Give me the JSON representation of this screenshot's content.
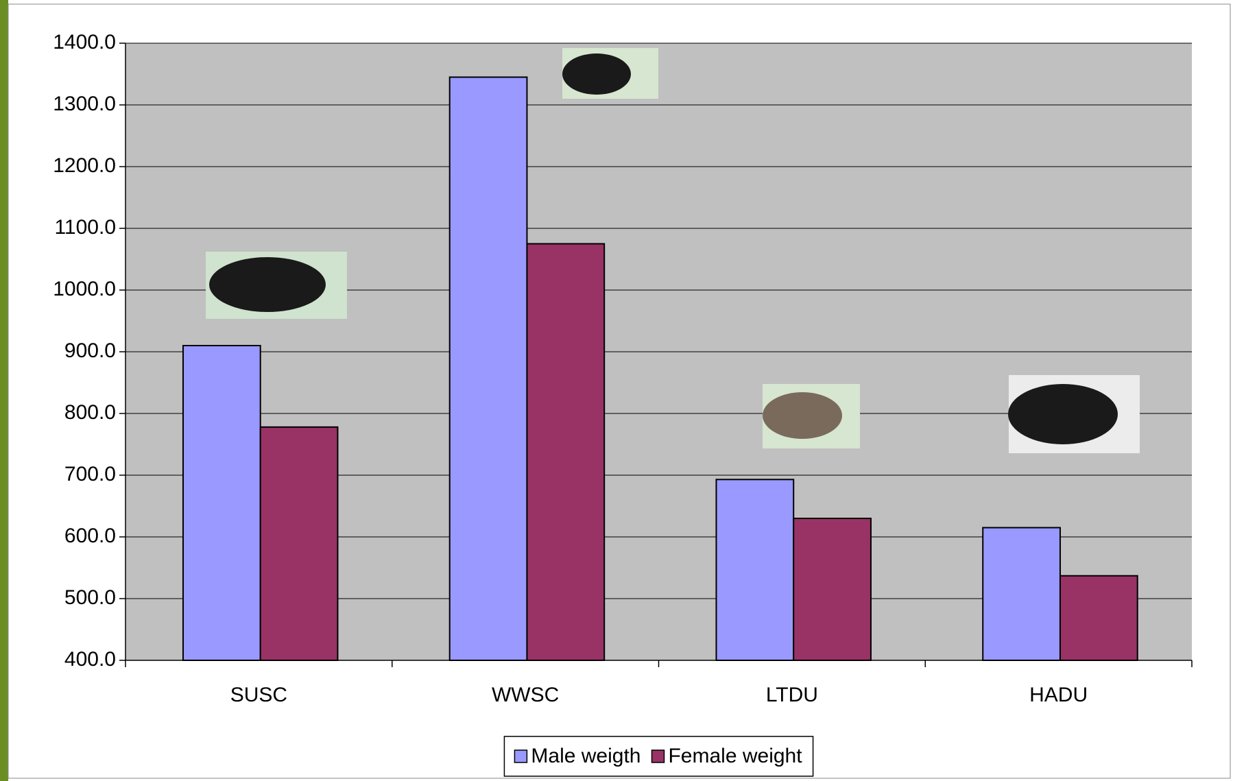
{
  "chart_data": {
    "type": "bar",
    "categories": [
      "SUSC",
      "WWSC",
      "LTDU",
      "HADU"
    ],
    "series": [
      {
        "name": "Male weigth",
        "color": "#9999ff",
        "values": [
          910,
          1345,
          693,
          615
        ]
      },
      {
        "name": "Female weight",
        "color": "#993366",
        "values": [
          778,
          1075,
          630,
          537
        ]
      }
    ],
    "ylim": [
      400,
      1400
    ],
    "yticks": [
      {
        "value": 400,
        "label": "400.0"
      },
      {
        "value": 500,
        "label": "500.0"
      },
      {
        "value": 600,
        "label": "600.0"
      },
      {
        "value": 700,
        "label": "700.0"
      },
      {
        "value": 800,
        "label": "800.0"
      },
      {
        "value": 900,
        "label": "900.0"
      },
      {
        "value": 1000,
        "label": "1000.0"
      },
      {
        "value": 1100,
        "label": "1100.0"
      },
      {
        "value": 1200,
        "label": "1200.0"
      },
      {
        "value": 1300,
        "label": "1300.0"
      },
      {
        "value": 1400,
        "label": "1400.0"
      }
    ],
    "grid": true,
    "legend": "bottom",
    "plot_background": "#c0c0c0"
  }
}
